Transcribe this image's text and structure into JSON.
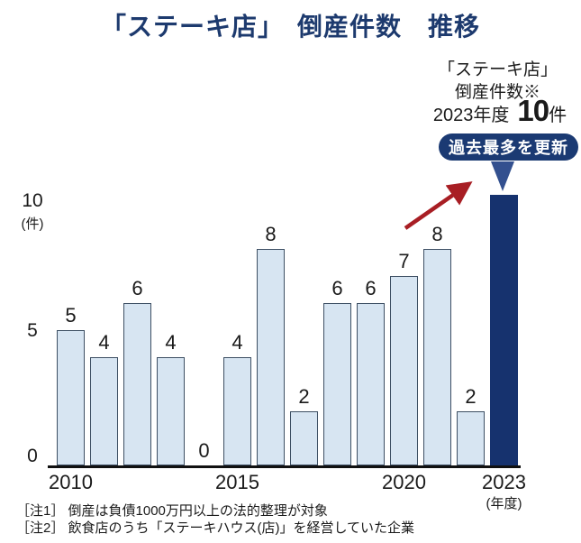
{
  "title": "「ステーキ店」　倒産件数　推移",
  "annotation": {
    "line1": "「ステーキ店」",
    "line2": "倒産件数※",
    "year_label": "2023年度",
    "big_value": "10",
    "unit": "件",
    "badge": "過去最多を更新"
  },
  "y_axis": {
    "top_label": "10",
    "unit_label": "(件)",
    "mid_label": "5",
    "zero_label": "0"
  },
  "x_axis": {
    "ticks": [
      {
        "label": "2010",
        "index": 0
      },
      {
        "label": "2015",
        "index": 5
      },
      {
        "label": "2020",
        "index": 10
      },
      {
        "label": "2023",
        "index": 13
      }
    ],
    "unit_label": "(年度)",
    "unit_tick_index": 13
  },
  "notes": [
    "［注1］ 倒産は負債1000万円以上の法的整理が対象",
    "［注2］ 飲食店のうち「ステーキハウス(店)」を経営していた企業"
  ],
  "colors": {
    "title_navy": "#1d3a6e",
    "bar_fill": "#d7e5f2",
    "bar_border": "#3d4f63",
    "highlight_bar": "#16326e",
    "badge_bg": "#1b3a73",
    "badge_text": "#ffffff",
    "pointer_triangle": "#33508f",
    "arrow_red": "#a81e24",
    "axis": "#111111",
    "text": "#1a1a1a"
  },
  "chart_data": {
    "type": "bar",
    "categories": [
      "2010",
      "2011",
      "2012",
      "2013",
      "2014",
      "2015",
      "2016",
      "2017",
      "2018",
      "2019",
      "2020",
      "2021",
      "2022",
      "2023"
    ],
    "values": [
      5,
      4,
      6,
      4,
      0,
      4,
      8,
      2,
      6,
      6,
      7,
      8,
      2,
      10
    ],
    "title": "「ステーキ店」 倒産件数 推移",
    "xlabel": "年度",
    "ylabel": "件",
    "ylim": [
      0,
      10
    ],
    "highlight_index": 13,
    "show_value_labels": true,
    "value_label_hidden_for_highlight": true,
    "grid": false,
    "legend": "none"
  }
}
